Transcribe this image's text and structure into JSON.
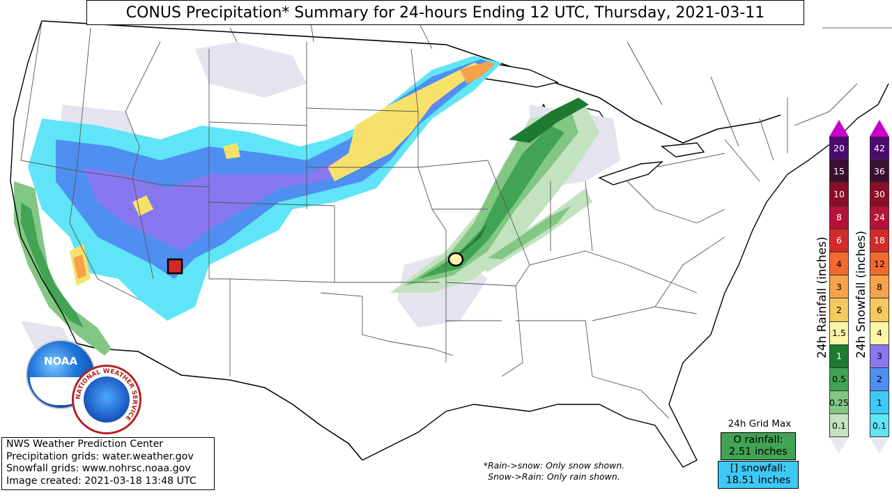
{
  "title": "CONUS Precipitation* Summary for 24-hours Ending 12 UTC, Thursday, 2021-03-11",
  "credits": [
    "NWS Weather Prediction Center",
    "Precipitation grids: water.weather.gov",
    "Snowfall grids: www.nohrsc.noaa.gov",
    "Image created: 2021-03-18 13:48 UTC"
  ],
  "note": {
    "line1": "*Rain->snow: Only snow shown.",
    "line2": "Snow->Rain: Only rain shown."
  },
  "grid_max": {
    "title": "24h Grid Max",
    "rain_line1": "O rainfall:",
    "rain_line2": "2.51 inches",
    "snow_line1": "[] snowfall:",
    "snow_line2": "18.51 inches"
  },
  "legend_rain": {
    "label": "24h Rainfall (inches)",
    "levels": [
      "20",
      "15",
      "10",
      "8",
      "6",
      "4",
      "3",
      "2",
      "1.5",
      "1",
      "0.5",
      "0.25",
      "0.1"
    ],
    "colors": [
      "#4d0a6e",
      "#3b0f2f",
      "#8c0d26",
      "#b5123a",
      "#d32a2a",
      "#f26a2d",
      "#f7a14a",
      "#f6c85e",
      "#fff5a8",
      "#1e7a31",
      "#41a353",
      "#82c783",
      "#c3e3c0"
    ]
  },
  "legend_snow": {
    "label": "24h Snowfall (inches)",
    "levels": [
      "42",
      "36",
      "30",
      "24",
      "18",
      "12",
      "8",
      "6",
      "4",
      "3",
      "2",
      "1",
      "0.1"
    ],
    "colors": [
      "#4d0a6e",
      "#3b0f2f",
      "#8c0d26",
      "#b5123a",
      "#d32a2a",
      "#f26a2d",
      "#f7a14a",
      "#f6c85e",
      "#fff5a8",
      "#8878f0",
      "#4f8ff2",
      "#3ec8f4",
      "#5fe5f7"
    ]
  },
  "logos": {
    "noaa": "NOAA",
    "nws": "NATIONAL WEATHER SERVICE"
  },
  "colors": {
    "snow_light": "#5fe5f7",
    "snow_blue": "#4f8ff2",
    "snow_purple": "#8878f0",
    "snow_yellow": "#f6e26b",
    "rain_light": "#c3e3c0",
    "rain_mid": "#82c783",
    "rain_dark": "#1e7a31",
    "trace": "#e4e4ee",
    "border": "#000000"
  }
}
